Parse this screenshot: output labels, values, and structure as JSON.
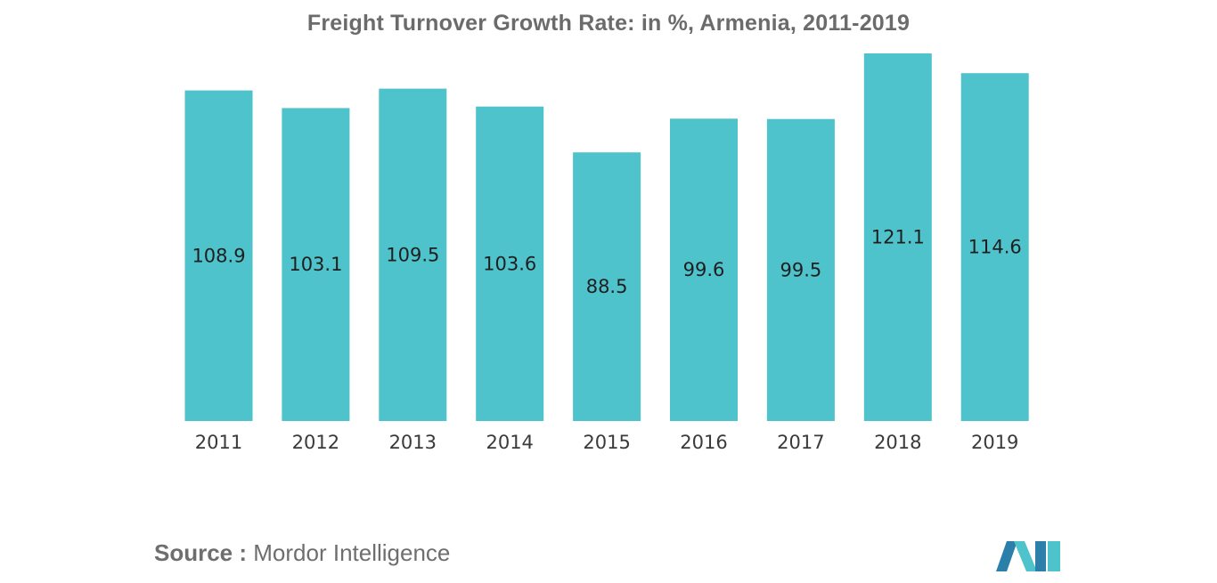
{
  "chart_data": {
    "type": "bar",
    "title": "Freight Turnover Growth Rate: in %, Armenia, 2011-2019",
    "categories": [
      "2011",
      "2012",
      "2013",
      "2014",
      "2015",
      "2016",
      "2017",
      "2018",
      "2019"
    ],
    "values": [
      108.9,
      103.1,
      109.5,
      103.6,
      88.5,
      99.6,
      99.5,
      121.1,
      114.6
    ],
    "value_labels": [
      "108.9",
      "103.1",
      "109.5",
      "103.6",
      "88.5",
      "99.6",
      "99.5",
      "121.1",
      "114.6"
    ],
    "xlabel": "",
    "ylabel": "",
    "ylim": [
      0,
      121.1
    ],
    "grid": false,
    "bar_color": "#4fc3cb"
  },
  "footer": {
    "source_label": "Source :",
    "source_name": "Mordor Intelligence"
  },
  "logo": {
    "icon": "mordor-intelligence-logo",
    "colors": [
      "#2b7fa8",
      "#4fc3cb"
    ]
  }
}
